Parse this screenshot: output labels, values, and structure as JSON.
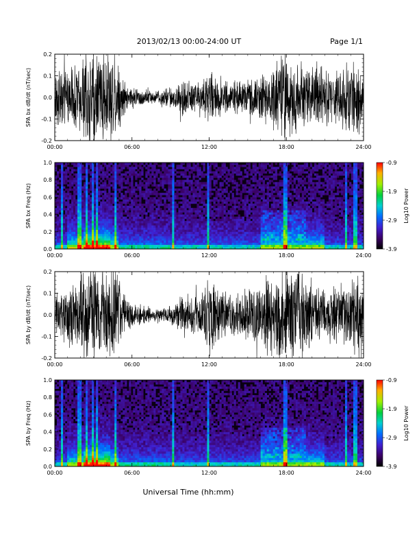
{
  "header": {
    "title": "2013/02/13  00:00-24:00 UT",
    "page": "Page 1/1"
  },
  "x_title": "Universal Time (hh:mm)",
  "colors": {
    "spectrogram_bg": "#0a0012",
    "trace": "#000000"
  },
  "chart_data": [
    {
      "type": "line",
      "ylabel": "SPA bx dB/dt (nT/sec)",
      "ylim": [
        -0.2,
        0.2
      ],
      "yticks": [
        "0.2",
        "0.1",
        "0.0",
        "-0.1",
        "-0.2"
      ],
      "xlim": [
        0,
        24
      ],
      "xticks": [
        "00:00",
        "06:00",
        "12:00",
        "18:00",
        "24:00"
      ],
      "envelope": {
        "hours": [
          0,
          0.5,
          1,
          1.5,
          2,
          2.5,
          3,
          3.5,
          4,
          4.5,
          5,
          5.5,
          6,
          6.5,
          7,
          7.5,
          8,
          8.5,
          9,
          9.5,
          10,
          10.5,
          11,
          11.5,
          12,
          12.5,
          13,
          13.5,
          14,
          14.5,
          15,
          15.5,
          16,
          16.5,
          17,
          17.5,
          18,
          18.5,
          19,
          19.5,
          20,
          20.5,
          21,
          21.5,
          22,
          22.5,
          23,
          23.5,
          24
        ],
        "amplitude": [
          0.12,
          0.14,
          0.13,
          0.15,
          0.17,
          0.22,
          0.22,
          0.22,
          0.2,
          0.22,
          0.16,
          0.06,
          0.05,
          0.04,
          0.04,
          0.03,
          0.03,
          0.04,
          0.05,
          0.06,
          0.09,
          0.08,
          0.07,
          0.09,
          0.12,
          0.1,
          0.08,
          0.07,
          0.07,
          0.08,
          0.08,
          0.09,
          0.1,
          0.12,
          0.16,
          0.17,
          0.2,
          0.19,
          0.16,
          0.15,
          0.14,
          0.13,
          0.13,
          0.12,
          0.13,
          0.14,
          0.15,
          0.16,
          0.14
        ]
      }
    },
    {
      "type": "heatmap",
      "ylabel": "SPA bx Freq (Hz)",
      "ylim": [
        0.0,
        1.0
      ],
      "yticks": [
        "1.0",
        "0.8",
        "0.6",
        "0.4",
        "0.2",
        "0.0"
      ],
      "xlim": [
        0,
        24
      ],
      "xticks": [
        "00:00",
        "06:00",
        "12:00",
        "18:00",
        "24:00"
      ],
      "colorbar": {
        "label": "Log10 Power",
        "range": [
          -3.9,
          -0.9
        ],
        "ticks": [
          "-0.9",
          "-1.9",
          "-2.9",
          "-3.9"
        ]
      }
    },
    {
      "type": "line",
      "ylabel": "SPA by dB/dt (nT/sec)",
      "ylim": [
        -0.2,
        0.2
      ],
      "yticks": [
        "0.2",
        "0.1",
        "0.0",
        "-0.1",
        "-0.2"
      ],
      "xlim": [
        0,
        24
      ],
      "xticks": [
        "00:00",
        "06:00",
        "12:00",
        "18:00",
        "24:00"
      ],
      "envelope": {
        "hours": [
          0,
          0.5,
          1,
          1.5,
          2,
          2.5,
          3,
          3.5,
          4,
          4.5,
          5,
          5.5,
          6,
          6.5,
          7,
          7.5,
          8,
          8.5,
          9,
          9.5,
          10,
          10.5,
          11,
          11.5,
          12,
          12.5,
          13,
          13.5,
          14,
          14.5,
          15,
          15.5,
          16,
          16.5,
          17,
          17.5,
          18,
          18.5,
          19,
          19.5,
          20,
          20.5,
          21,
          21.5,
          22,
          22.5,
          23,
          23.5,
          24
        ],
        "amplitude": [
          0.1,
          0.12,
          0.14,
          0.15,
          0.18,
          0.22,
          0.22,
          0.22,
          0.21,
          0.22,
          0.18,
          0.08,
          0.06,
          0.05,
          0.04,
          0.03,
          0.03,
          0.03,
          0.04,
          0.06,
          0.1,
          0.09,
          0.09,
          0.12,
          0.17,
          0.13,
          0.1,
          0.1,
          0.1,
          0.12,
          0.11,
          0.13,
          0.15,
          0.18,
          0.2,
          0.2,
          0.22,
          0.22,
          0.2,
          0.18,
          0.16,
          0.14,
          0.13,
          0.13,
          0.13,
          0.14,
          0.15,
          0.17,
          0.14
        ]
      }
    },
    {
      "type": "heatmap",
      "ylabel": "SPA by Freq (Hz)",
      "ylim": [
        0.0,
        1.0
      ],
      "yticks": [
        "1.0",
        "0.8",
        "0.6",
        "0.4",
        "0.2",
        "0.0"
      ],
      "xlim": [
        0,
        24
      ],
      "xticks": [
        "00:00",
        "06:00",
        "12:00",
        "18:00",
        "24:00"
      ],
      "colorbar": {
        "label": "Log10 Power",
        "range": [
          -3.9,
          -0.9
        ],
        "ticks": [
          "-0.9",
          "-1.9",
          "-2.9",
          "-3.9"
        ]
      }
    }
  ]
}
